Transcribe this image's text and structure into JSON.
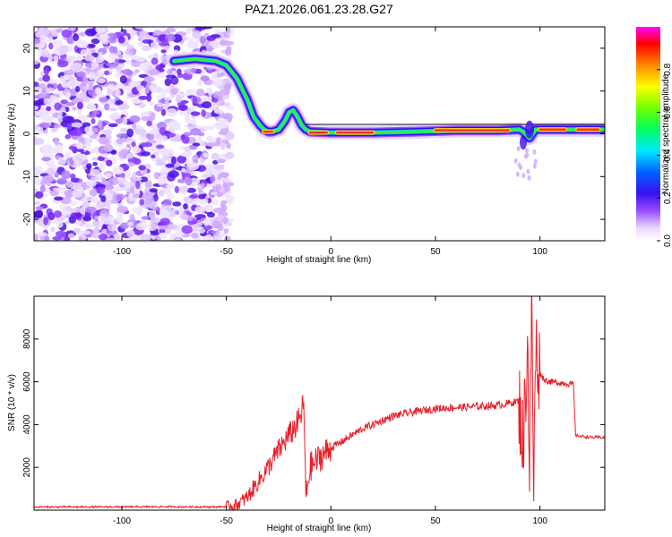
{
  "title": "PAZ1.2026.061.23.28.G27",
  "chart_data": [
    {
      "type": "heatmap",
      "xlabel": "Height of straight line (km)",
      "ylabel": "Frequency (Hz)",
      "xlim": [
        -142,
        131
      ],
      "ylim": [
        -25,
        25
      ],
      "xticks": [
        -100,
        -50,
        0,
        50,
        100
      ],
      "yticks": [
        -20,
        -10,
        0,
        10,
        20
      ],
      "colorbar": {
        "label": "Normalized spectral amplitude",
        "range": [
          0.0,
          1.0
        ],
        "ticks": [
          0.0,
          0.2,
          0.4,
          0.6,
          0.8
        ],
        "tick_labels": [
          "0.0",
          "0.2",
          "0.4",
          "0.6",
          "0.8"
        ]
      },
      "ridge": {
        "x": [
          -75,
          -65,
          -55,
          -50,
          -45,
          -40,
          -37,
          -34,
          -32,
          -30,
          -28,
          -25,
          -22,
          -20,
          -18,
          -16,
          -14,
          -12,
          -10,
          0,
          20,
          40,
          60,
          80,
          90,
          92,
          95,
          98,
          100,
          110,
          130
        ],
        "y": [
          17,
          17.5,
          17,
          16,
          13,
          8,
          4,
          2,
          1,
          0.5,
          0.5,
          1,
          3,
          5,
          5.5,
          4,
          2,
          1,
          0.5,
          0.3,
          0.3,
          0.5,
          0.8,
          0.8,
          1,
          0.5,
          -1,
          1,
          1,
          1,
          1
        ]
      },
      "noise_region": {
        "x": [
          -142,
          -48
        ],
        "y": [
          -25,
          25
        ]
      }
    },
    {
      "type": "line",
      "xlabel": "Height of straight line (km)",
      "ylabel": "SNR (10 * v/v)",
      "xlim": [
        -142,
        131
      ],
      "ylim": [
        0,
        10000
      ],
      "xticks": [
        -100,
        -50,
        0,
        50,
        100
      ],
      "yticks": [
        2000,
        4000,
        6000,
        8000
      ],
      "series": [
        {
          "name": "SNR",
          "color": "#e8202a",
          "x": [
            -142,
            -110,
            -80,
            -55,
            -50,
            -45,
            -40,
            -35,
            -30,
            -25,
            -20,
            -15,
            -13,
            -12,
            -10,
            -5,
            0,
            5,
            10,
            15,
            20,
            25,
            30,
            40,
            50,
            60,
            70,
            80,
            85,
            90,
            92,
            94,
            95,
            96,
            97,
            98,
            100,
            102,
            105,
            110,
            115,
            116,
            117,
            120,
            125,
            131
          ],
          "y": [
            150,
            150,
            160,
            150,
            170,
            250,
            600,
            1300,
            2000,
            2800,
            3500,
            4200,
            5000,
            600,
            2000,
            2500,
            2900,
            3200,
            3500,
            3800,
            4000,
            4200,
            4400,
            4600,
            4750,
            4800,
            4850,
            4900,
            5000,
            5100,
            3000,
            8000,
            2000,
            9500,
            1200,
            7500,
            6400,
            6100,
            6000,
            5950,
            5900,
            5850,
            3500,
            3450,
            3400,
            3400
          ]
        }
      ]
    }
  ]
}
